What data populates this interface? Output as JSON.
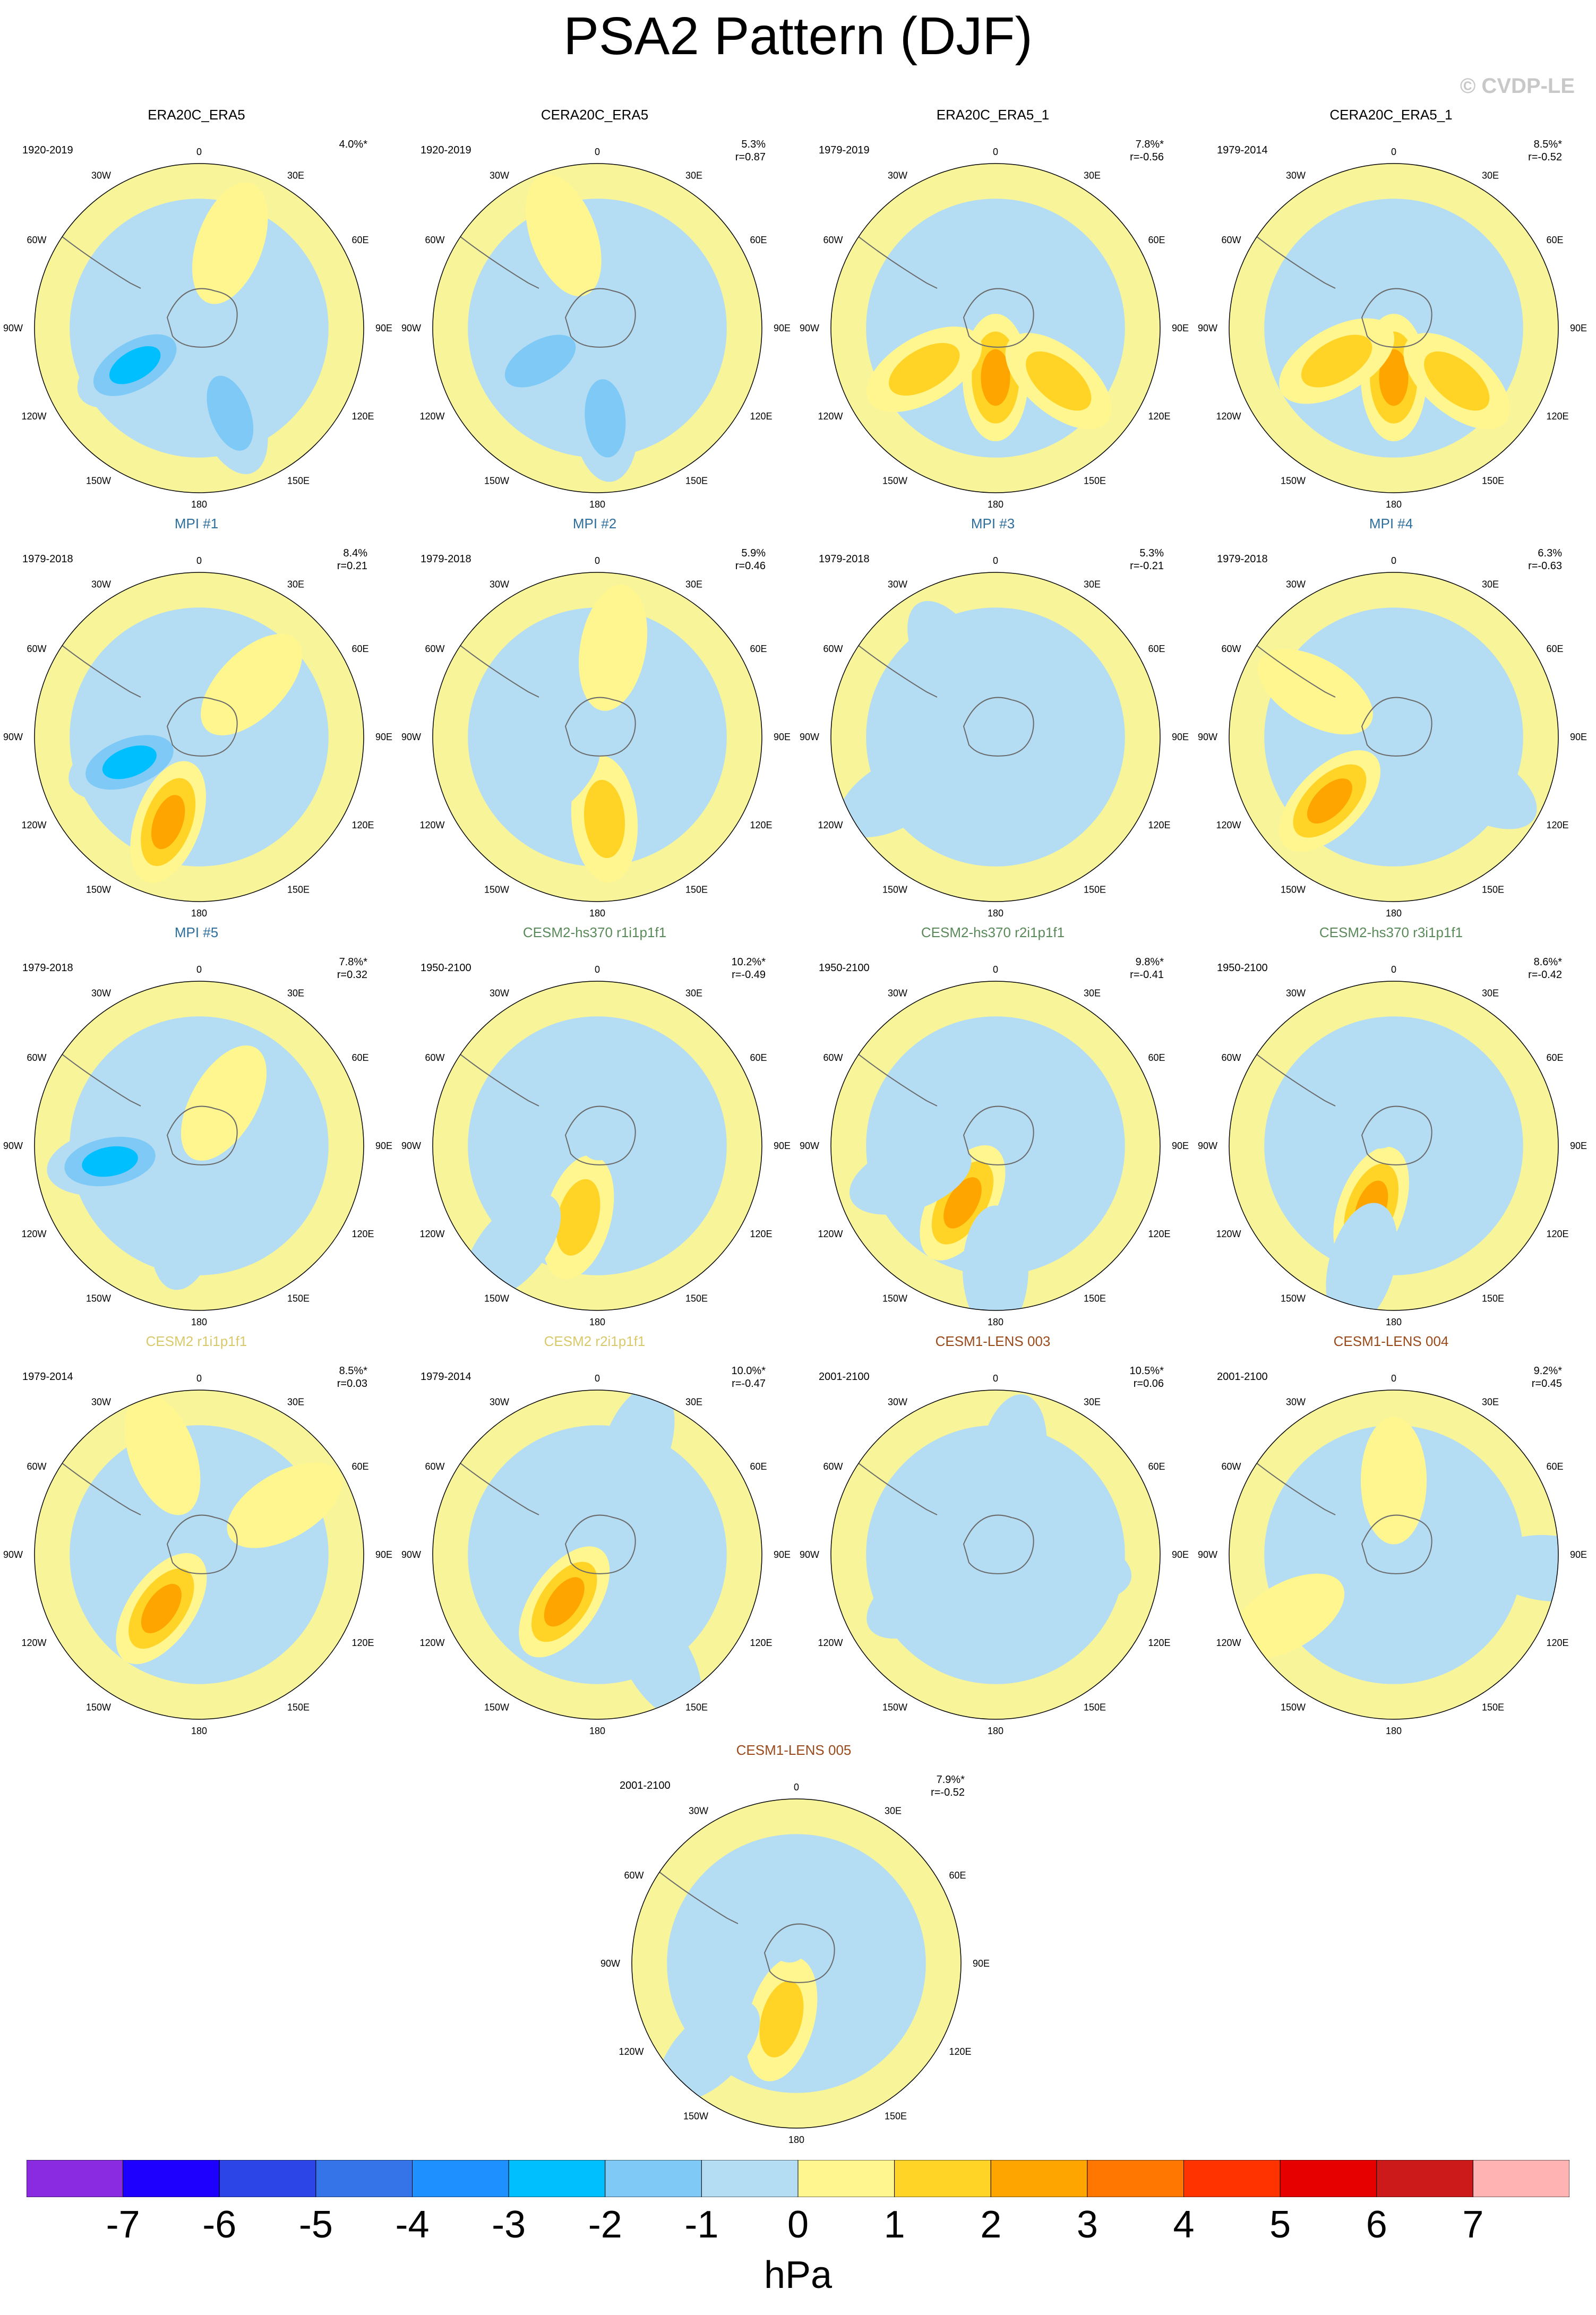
{
  "title": "PSA2 Pattern (DJF)",
  "watermark": "© CVDP-LE",
  "lon_labels": [
    "0",
    "30E",
    "60E",
    "90E",
    "120E",
    "150E",
    "180",
    "150W",
    "120W",
    "90W",
    "60W",
    "30W"
  ],
  "colors": {
    "title_black": "#000000",
    "title_blue": "#2e6f9e",
    "title_green": "#5a8a5a",
    "title_yellow": "#d9c96a",
    "title_brown": "#9a4a1a",
    "land_line": "#6a6a6a"
  },
  "chart_data": {
    "type": "map-panels",
    "projection": "south-polar-stereographic",
    "variable": "sea level pressure anomaly",
    "unit": "hPa",
    "colorbar": {
      "ticks": [
        "-7",
        "-6",
        "-5",
        "-4",
        "-3",
        "-2",
        "-1",
        "0",
        "1",
        "2",
        "3",
        "4",
        "5",
        "6",
        "7"
      ],
      "levels": [
        -7,
        -6,
        -5,
        -4,
        -3,
        -2,
        -1,
        0,
        1,
        2,
        3,
        4,
        5,
        6,
        7
      ],
      "colors": [
        "#8a2be2",
        "#1e00ff",
        "#2b45e6",
        "#3574e8",
        "#1e90ff",
        "#00bfff",
        "#7ec9f5",
        "#b4ddf4",
        "#fff68f",
        "#ffd427",
        "#ffa500",
        "#ff7700",
        "#ff3300",
        "#e60000",
        "#cc1a1a",
        "#ffb3b3"
      ]
    },
    "panels": [
      {
        "title": "ERA20C_ERA5",
        "color": "black",
        "period": "1920-2019",
        "pct": "4.0%*",
        "r": ""
      },
      {
        "title": "CERA20C_ERA5",
        "color": "black",
        "period": "1920-2019",
        "pct": "5.3%",
        "r": "r=0.87"
      },
      {
        "title": "ERA20C_ERA5_1",
        "color": "black",
        "period": "1979-2019",
        "pct": "7.8%*",
        "r": "r=-0.56"
      },
      {
        "title": "CERA20C_ERA5_1",
        "color": "black",
        "period": "1979-2014",
        "pct": "8.5%*",
        "r": "r=-0.52"
      },
      {
        "title": "MPI #1",
        "color": "blue",
        "period": "1979-2018",
        "pct": "8.4%",
        "r": "r=0.21"
      },
      {
        "title": "MPI #2",
        "color": "blue",
        "period": "1979-2018",
        "pct": "5.9%",
        "r": "r=0.46"
      },
      {
        "title": "MPI #3",
        "color": "blue",
        "period": "1979-2018",
        "pct": "5.3%",
        "r": "r=-0.21"
      },
      {
        "title": "MPI #4",
        "color": "blue",
        "period": "1979-2018",
        "pct": "6.3%",
        "r": "r=-0.63"
      },
      {
        "title": "MPI #5",
        "color": "blue",
        "period": "1979-2018",
        "pct": "7.8%*",
        "r": "r=0.32"
      },
      {
        "title": "CESM2-hs370 r1i1p1f1",
        "color": "green",
        "period": "1950-2100",
        "pct": "10.2%*",
        "r": "r=-0.49"
      },
      {
        "title": "CESM2-hs370 r2i1p1f1",
        "color": "green",
        "period": "1950-2100",
        "pct": "9.8%*",
        "r": "r=-0.41"
      },
      {
        "title": "CESM2-hs370 r3i1p1f1",
        "color": "green",
        "period": "1950-2100",
        "pct": "8.6%*",
        "r": "r=-0.42"
      },
      {
        "title": "CESM2 r1i1p1f1",
        "color": "yellow",
        "period": "1979-2014",
        "pct": "8.5%*",
        "r": "r=0.03"
      },
      {
        "title": "CESM2 r2i1p1f1",
        "color": "yellow",
        "period": "1979-2014",
        "pct": "10.0%*",
        "r": "r=-0.47"
      },
      {
        "title": "CESM1-LENS 003",
        "color": "brown",
        "period": "2001-2100",
        "pct": "10.5%*",
        "r": "r=0.06"
      },
      {
        "title": "CESM1-LENS 004",
        "color": "brown",
        "period": "2001-2100",
        "pct": "9.2%*",
        "r": "r=0.45"
      },
      {
        "title": "CESM1-LENS 005",
        "color": "brown",
        "period": "2001-2100",
        "pct": "7.9%*",
        "r": "r=-0.52"
      }
    ],
    "anomaly_centers": [
      [
        {
          "lon": 240,
          "r": 0.45,
          "v": -3
        },
        {
          "lon": 160,
          "r": 0.55,
          "v": -2
        },
        {
          "lon": 20,
          "r": 0.55,
          "v": 1
        }
      ],
      [
        {
          "lon": 240,
          "r": 0.4,
          "v": -2
        },
        {
          "lon": 175,
          "r": 0.55,
          "v": -2
        },
        {
          "lon": 340,
          "r": 0.6,
          "v": 1
        }
      ],
      [
        {
          "lon": 180,
          "r": 0.3,
          "v": 3
        },
        {
          "lon": 130,
          "r": 0.5,
          "v": 2
        },
        {
          "lon": 240,
          "r": 0.5,
          "v": 2
        }
      ],
      [
        {
          "lon": 180,
          "r": 0.3,
          "v": 3
        },
        {
          "lon": 130,
          "r": 0.5,
          "v": 2
        },
        {
          "lon": 240,
          "r": 0.4,
          "v": 2
        }
      ],
      [
        {
          "lon": 250,
          "r": 0.45,
          "v": -3
        },
        {
          "lon": 200,
          "r": 0.55,
          "v": 3
        },
        {
          "lon": 45,
          "r": 0.45,
          "v": 1
        }
      ],
      [
        {
          "lon": 175,
          "r": 0.5,
          "v": 2
        },
        {
          "lon": 10,
          "r": 0.55,
          "v": 1
        },
        {
          "lon": 230,
          "r": 0.4,
          "v": -1
        }
      ],
      [
        {
          "lon": 330,
          "r": 0.55,
          "v": -1
        },
        {
          "lon": 240,
          "r": 0.7,
          "v": -1
        },
        {
          "lon": 150,
          "r": 0.4,
          "v": -1
        }
      ],
      [
        {
          "lon": 225,
          "r": 0.55,
          "v": 3
        },
        {
          "lon": 300,
          "r": 0.55,
          "v": 1
        },
        {
          "lon": 120,
          "r": 0.6,
          "v": -1
        }
      ],
      [
        {
          "lon": 260,
          "r": 0.55,
          "v": -3
        },
        {
          "lon": 190,
          "r": 0.5,
          "v": -1
        },
        {
          "lon": 30,
          "r": 0.3,
          "v": 1
        }
      ],
      [
        {
          "lon": 195,
          "r": 0.45,
          "v": 2
        },
        {
          "lon": 220,
          "r": 0.8,
          "v": -1
        },
        {
          "lon": 20,
          "r": 0.3,
          "v": -1
        }
      ],
      [
        {
          "lon": 210,
          "r": 0.4,
          "v": 3
        },
        {
          "lon": 250,
          "r": 0.55,
          "v": -1
        },
        {
          "lon": 180,
          "r": 0.75,
          "v": -1
        }
      ],
      [
        {
          "lon": 200,
          "r": 0.4,
          "v": 3
        },
        {
          "lon": 195,
          "r": 0.75,
          "v": -1
        },
        {
          "lon": 320,
          "r": 0.4,
          "v": -1
        }
      ],
      [
        {
          "lon": 215,
          "r": 0.4,
          "v": 3
        },
        {
          "lon": 340,
          "r": 0.65,
          "v": 1
        },
        {
          "lon": 60,
          "r": 0.6,
          "v": 1
        }
      ],
      [
        {
          "lon": 215,
          "r": 0.35,
          "v": 3
        },
        {
          "lon": 20,
          "r": 0.7,
          "v": -1
        },
        {
          "lon": 150,
          "r": 0.75,
          "v": -1
        }
      ],
      [
        {
          "lon": 240,
          "r": 0.5,
          "v": -1
        },
        {
          "lon": 10,
          "r": 0.6,
          "v": -1
        },
        {
          "lon": 100,
          "r": 0.45,
          "v": -1
        }
      ],
      [
        {
          "lon": 0,
          "r": 0.45,
          "v": 1
        },
        {
          "lon": 240,
          "r": 0.75,
          "v": 1
        },
        {
          "lon": 95,
          "r": 0.95,
          "v": -1
        }
      ],
      [
        {
          "lon": 195,
          "r": 0.35,
          "v": 2
        },
        {
          "lon": 225,
          "r": 0.75,
          "v": -1
        },
        {
          "lon": 340,
          "r": 0.4,
          "v": -1
        }
      ]
    ]
  }
}
